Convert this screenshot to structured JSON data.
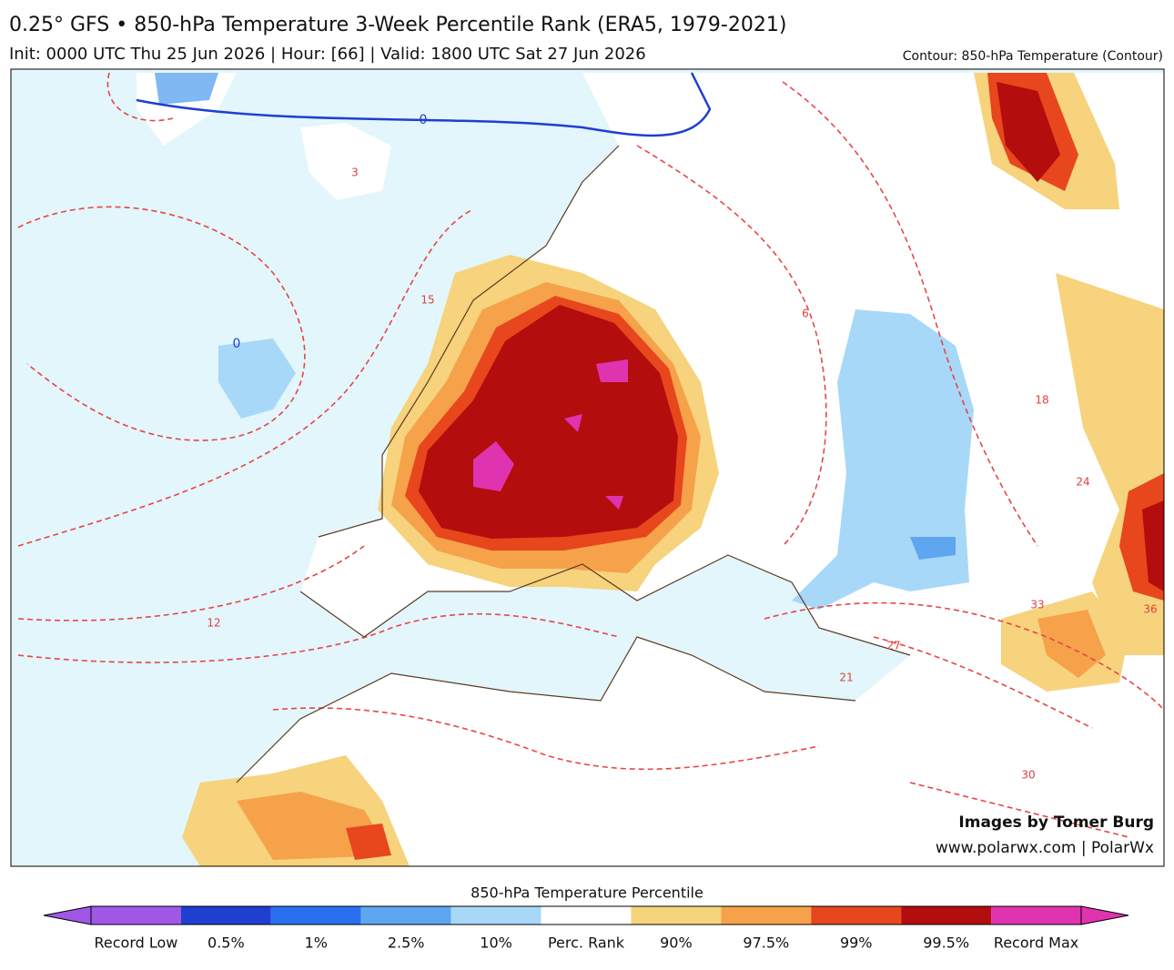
{
  "header": {
    "title": "0.25° GFS • 850-hPa Temperature 3-Week Percentile Rank (ERA5, 1979-2021)",
    "subtitle": "Init: 0000 UTC Thu 25 Jun 2026 | Hour: [66] | Valid: 1800 UTC Sat 27 Jun 2026",
    "contour_note": "Contour: 850-hPa Temperature (Contour)"
  },
  "map": {
    "credit_line1": "Images by Tomer Burg",
    "credit_line2": "www.polarwx.com | PolarWx",
    "contour_labels": [
      "0",
      "0",
      "3",
      "6",
      "12",
      "15",
      "18",
      "21",
      "24",
      "27",
      "30",
      "33",
      "36"
    ]
  },
  "colorbar": {
    "title": "850-hPa Temperature Percentile",
    "bins": [
      {
        "label": "Record Low",
        "color": "#a057e6"
      },
      {
        "label": "0.5%",
        "color": "#1e3fd0"
      },
      {
        "label": "1%",
        "color": "#2a6ff0"
      },
      {
        "label": "2.5%",
        "color": "#5ea6f0"
      },
      {
        "label": "10%",
        "color": "#a8d8f8"
      },
      {
        "label": "Perc. Rank",
        "color": "#ffffff"
      },
      {
        "label": "90%",
        "color": "#f6d37c"
      },
      {
        "label": "97.5%",
        "color": "#f5a24a"
      },
      {
        "label": "99%",
        "color": "#e8461c"
      },
      {
        "label": "99.5%",
        "color": "#b30d0d"
      },
      {
        "label": "Record Max",
        "color": "#e033b0"
      }
    ]
  }
}
